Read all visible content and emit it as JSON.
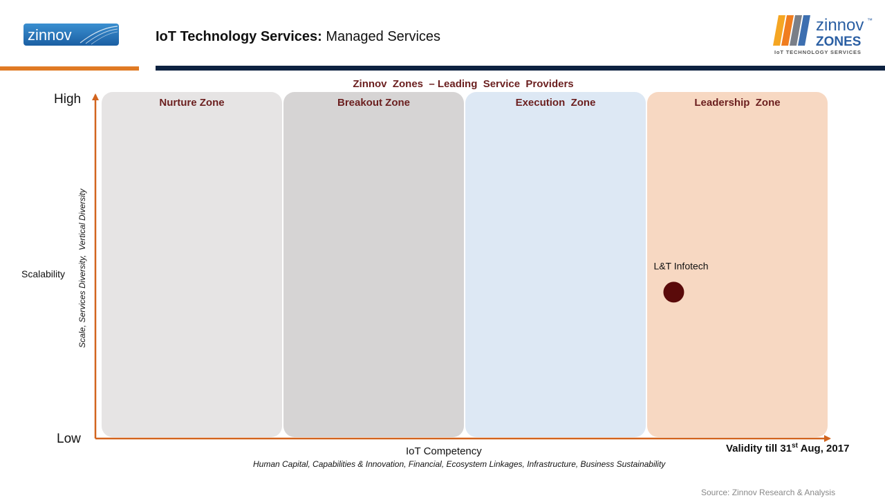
{
  "header": {
    "logo_left_text": "zinnov",
    "title_bold": "IoT Technology Services:",
    "title_rest": "Managed Services",
    "logo_right_text": "zinnov",
    "logo_right_sub": "ZONES",
    "logo_right_tag": "IoT TECHNOLOGY SERVICES",
    "logo_right_tm": "™"
  },
  "colors": {
    "orange_bar": "#e07a24",
    "navy_bar": "#0d2240",
    "axis": "#d2641e",
    "zone_title": "#6b1f1f",
    "marker": "#5a0a0a"
  },
  "chart_data": {
    "type": "scatter",
    "title": "Zinnov  Zones  – Leading  Service  Providers",
    "xlabel": "IoT  Competency",
    "xsublabel": "Human Capital, Capabilities & Innovation, Financial,  Ecosystem Linkages, Infrastructure, Business Sustainability",
    "ylabel": "Scalability",
    "ysublabel": "Scale, Services Diversity,  Vertical Diversity",
    "y_high_label": "High",
    "y_low_label": "Low",
    "xlim": [
      0,
      4
    ],
    "ylim": [
      0,
      1
    ],
    "zones": [
      {
        "name": "Nurture Zone",
        "x_range": [
          0,
          1
        ],
        "color": "#e6e4e4"
      },
      {
        "name": "Breakout Zone",
        "x_range": [
          1,
          2
        ],
        "color": "#d6d4d4"
      },
      {
        "name": "Execution  Zone",
        "x_range": [
          2,
          3
        ],
        "color": "#dde8f4"
      },
      {
        "name": "Leadership  Zone",
        "x_range": [
          3,
          4
        ],
        "color": "#f7d8c2"
      }
    ],
    "points": [
      {
        "label": "L&T Infotech",
        "x": 3.15,
        "y": 0.42
      }
    ]
  },
  "footer": {
    "validity_pre": "Validity till 31",
    "validity_sup": "st",
    "validity_post": " Aug, 2017",
    "source": "Source: Zinnov Research & Analysis"
  }
}
